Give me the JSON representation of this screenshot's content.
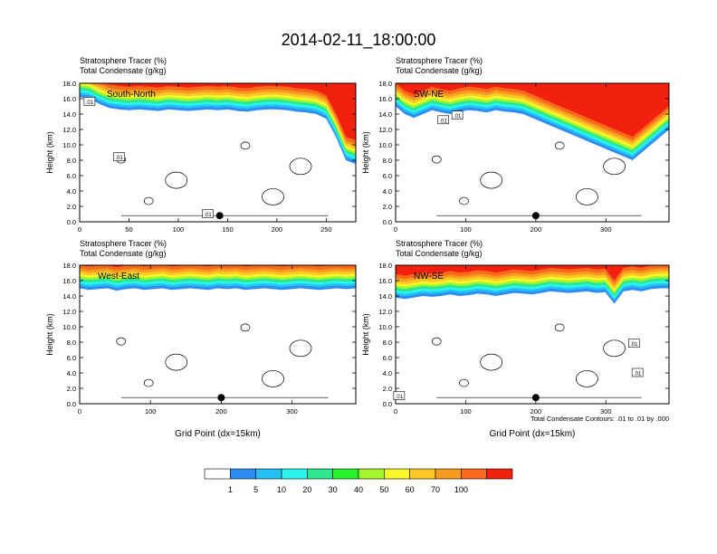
{
  "title": "2014-02-11_18:00:00",
  "chart_data": [
    {
      "type": "heatmap",
      "panel": "top-left",
      "header_line1": "Stratosphere Tracer   (%)",
      "header_line2": "Total Condensate   (g/kg)",
      "cross_section": "South-North",
      "ylabel": "Height (km)",
      "xlabel": "",
      "xlim": [
        0,
        280
      ],
      "ylim": [
        0,
        18
      ],
      "xticks": [
        0,
        50,
        100,
        150,
        200,
        250
      ],
      "yticks": [
        "0.0",
        "2.0",
        "4.0",
        "6.0",
        "8.0",
        "10.0",
        "12.0",
        "14.0",
        "16.0",
        "18.0"
      ],
      "marker_x": 142,
      "tracer_base_km": [
        16.2,
        16.0,
        15.3,
        14.8,
        14.6,
        14.5,
        14.6,
        14.5,
        14.4,
        14.6,
        14.5,
        14.4,
        14.5,
        14.6,
        14.5,
        14.6,
        14.4,
        14.3,
        14.5,
        14.6,
        14.6,
        14.5,
        14.3,
        14.2,
        14.0,
        13.4,
        11.0,
        8.0,
        7.5
      ],
      "contour_labels": [
        {
          "text": ".01",
          "x": 10,
          "y": 15.6
        },
        {
          "text": ".01",
          "x": 40,
          "y": 8.4
        },
        {
          "text": ".01",
          "x": 130,
          "y": 1.0
        }
      ]
    },
    {
      "type": "heatmap",
      "panel": "top-right",
      "header_line1": "Stratosphere Tracer   (%)",
      "header_line2": "Total Condensate   (g/kg)",
      "cross_section": "SW-NE",
      "ylabel": "Height (km)",
      "xlabel": "",
      "xlim": [
        0,
        390
      ],
      "ylim": [
        0,
        18
      ],
      "xticks": [
        0,
        100,
        200,
        300
      ],
      "yticks": [
        "0.0",
        "2.0",
        "4.0",
        "6.0",
        "8.0",
        "10.0",
        "12.0",
        "14.0",
        "16.0",
        "18.0"
      ],
      "marker_x": 200,
      "tracer_base_km": [
        15.0,
        14.0,
        13.5,
        14.0,
        14.5,
        14.2,
        14.0,
        14.3,
        14.5,
        14.4,
        14.2,
        14.5,
        14.3,
        14.2,
        14.0,
        13.5,
        13.0,
        12.5,
        12.0,
        11.5,
        11.0,
        10.5,
        10.0,
        9.5,
        9.0,
        8.5,
        8.0,
        9.0,
        10.0,
        11.0,
        12.0
      ],
      "contour_labels": [
        {
          "text": ".01",
          "x": 68,
          "y": 13.2
        },
        {
          "text": ".01",
          "x": 88,
          "y": 13.8
        }
      ]
    },
    {
      "type": "heatmap",
      "panel": "bottom-left",
      "header_line1": "Stratosphere Tracer   (%)",
      "header_line2": "Total Condensate   (g/kg)",
      "cross_section": "West-East",
      "ylabel": "Height (km)",
      "xlabel": "Grid Point (dx=15km)",
      "xlim": [
        0,
        390
      ],
      "ylim": [
        0,
        18
      ],
      "xticks": [
        0,
        100,
        200,
        300
      ],
      "yticks": [
        "0.0",
        "2.0",
        "4.0",
        "6.0",
        "8.0",
        "10.0",
        "12.0",
        "14.0",
        "16.0",
        "18.0"
      ],
      "marker_x": 200,
      "tracer_base_km": [
        15.0,
        14.8,
        14.9,
        15.0,
        14.7,
        14.9,
        15.0,
        14.8,
        14.9,
        15.0,
        14.8,
        14.9,
        15.0,
        14.9,
        14.8,
        15.0,
        14.9,
        15.0,
        14.8,
        14.9,
        15.0,
        14.9,
        14.8,
        14.9,
        15.0,
        14.9,
        14.8,
        14.9,
        15.0,
        14.9,
        15.0
      ],
      "contour_labels": []
    },
    {
      "type": "heatmap",
      "panel": "bottom-right",
      "header_line1": "Stratosphere Tracer   (%)",
      "header_line2": "Total Condensate   (g/kg)",
      "cross_section": "NW-SE",
      "ylabel": "Height (km)",
      "xlabel": "Grid Point (dx=15km)",
      "xlim": [
        0,
        390
      ],
      "ylim": [
        0,
        18
      ],
      "xticks": [
        0,
        100,
        200,
        300
      ],
      "yticks": [
        "0.0",
        "2.0",
        "4.0",
        "6.0",
        "8.0",
        "10.0",
        "12.0",
        "14.0",
        "16.0",
        "18.0"
      ],
      "marker_x": 200,
      "tracer_base_km": [
        13.8,
        13.6,
        13.8,
        14.0,
        13.9,
        14.0,
        14.2,
        14.0,
        14.1,
        14.3,
        14.2,
        14.0,
        14.2,
        14.4,
        14.3,
        14.2,
        14.4,
        14.6,
        14.5,
        14.4,
        14.5,
        14.6,
        14.4,
        14.5,
        13.0,
        14.6,
        14.8,
        14.6,
        14.9,
        15.0,
        15.0
      ],
      "contour_labels": [
        {
          "text": ".01",
          "x": 340,
          "y": 7.8
        },
        {
          "text": ".01",
          "x": 345,
          "y": 4.0
        },
        {
          "text": ".01",
          "x": 5,
          "y": 1.0
        }
      ],
      "contour_note": "Total Condensate Contours: .01 to .01 by .000"
    }
  ],
  "colorbar": {
    "colors": [
      "#ffffff",
      "#2f8cf4",
      "#25c1f6",
      "#29f5ee",
      "#2ee890",
      "#29f02c",
      "#a3f52c",
      "#f8f72b",
      "#fbc828",
      "#f89c20",
      "#f76a1b",
      "#f2200f"
    ],
    "labels": [
      "1",
      "5",
      "10",
      "20",
      "30",
      "40",
      "50",
      "60",
      "70",
      "100"
    ]
  }
}
